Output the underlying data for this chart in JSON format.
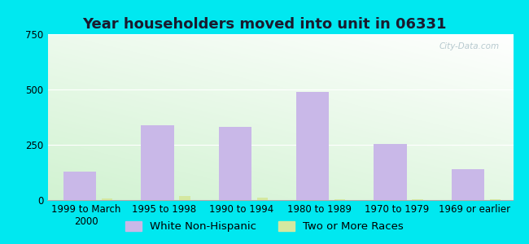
{
  "title": "Year householders moved into unit in 06331",
  "categories": [
    "1999 to March\n2000",
    "1995 to 1998",
    "1990 to 1994",
    "1980 to 1989",
    "1970 to 1979",
    "1969 or earlier"
  ],
  "white_non_hispanic": [
    130,
    340,
    330,
    490,
    255,
    140
  ],
  "two_or_more_races": [
    8,
    18,
    12,
    4,
    4,
    4
  ],
  "bar_color_white": "#c9b8e8",
  "bar_color_two": "#d4e8a0",
  "background_outer": "#00e8f0",
  "ylim": [
    0,
    750
  ],
  "yticks": [
    0,
    250,
    500,
    750
  ],
  "title_fontsize": 13,
  "tick_fontsize": 8.5,
  "legend_fontsize": 9.5,
  "watermark": "City-Data.com"
}
